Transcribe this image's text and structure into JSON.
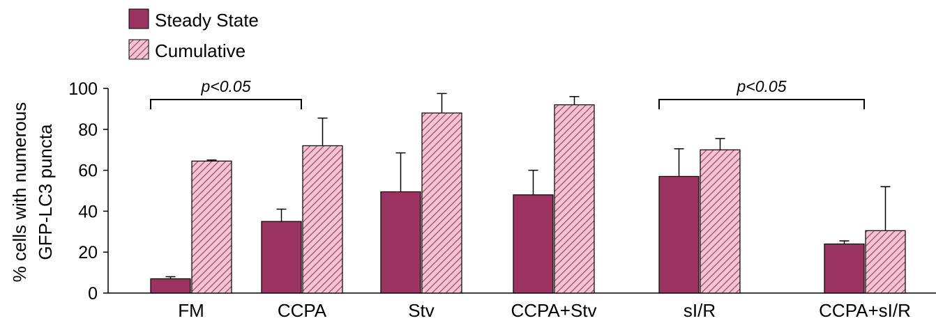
{
  "colors": {
    "steady": "#9b3360",
    "cumulative_bg": "#f3c4d2",
    "cumulative_hatch": "#a64a70",
    "axis": "#000000"
  },
  "chart_data": {
    "type": "bar",
    "categories": [
      "FM",
      "CCPA",
      "Stv",
      "CCPA+Stv",
      "sI/R",
      "CCPA+sI/R"
    ],
    "series": [
      {
        "name": "Steady State",
        "style": "solid",
        "values": [
          7,
          35,
          49.5,
          48,
          57,
          24
        ],
        "errors": [
          1,
          6,
          19,
          12,
          13.5,
          1.5
        ]
      },
      {
        "name": "Cumulative",
        "style": "hatched",
        "values": [
          64.5,
          72,
          88,
          92,
          70,
          30.5
        ],
        "errors": [
          0.5,
          13.5,
          9.5,
          4,
          5.5,
          21.5
        ]
      }
    ],
    "ylabel_lines": [
      "% cells with numerous",
      "GFP-LC3 puncta"
    ],
    "ylim": [
      0,
      100
    ],
    "yticks": [
      0,
      20,
      40,
      60,
      80,
      100
    ],
    "legend_position": "top-left",
    "significance": [
      {
        "from": 0,
        "to": 1,
        "label": "p<0.05"
      },
      {
        "from": 4,
        "to": 5,
        "label": "p<0.05"
      }
    ]
  }
}
